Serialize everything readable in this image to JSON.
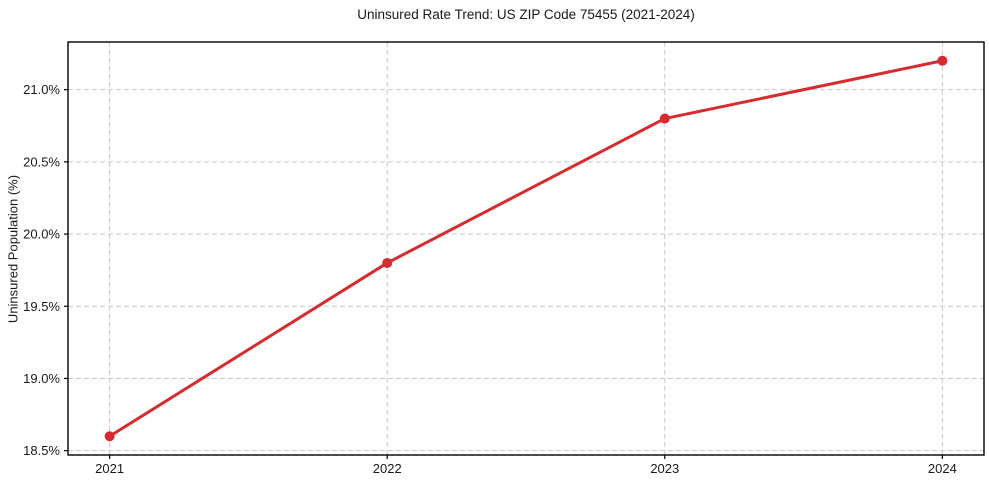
{
  "chart_data": {
    "type": "line",
    "title": "Uninsured Rate Trend: US ZIP Code 75455 (2021-2024)",
    "xlabel": "",
    "ylabel": "Uninsured Population (%)",
    "x": [
      2021,
      2022,
      2023,
      2024
    ],
    "series": [
      {
        "name": "Uninsured Rate",
        "values": [
          18.6,
          19.8,
          20.8,
          21.2
        ]
      }
    ],
    "x_tick_labels": [
      "2021",
      "2022",
      "2023",
      "2024"
    ],
    "y_ticks": [
      18.5,
      19.0,
      19.5,
      20.0,
      20.5,
      21.0
    ],
    "y_tick_labels": [
      "18.5%",
      "19.0%",
      "19.5%",
      "20.0%",
      "20.5%",
      "21.0%"
    ],
    "xlim": [
      2020.85,
      2024.15
    ],
    "ylim": [
      18.47,
      21.33
    ],
    "grid": true,
    "grid_style": "dashed",
    "legend": "none",
    "marker": "circle",
    "marker_size": 5,
    "line_width": 3
  },
  "colors": {
    "line": "#d62b2f",
    "grid": "#c9c9c9",
    "axis": "#000000",
    "text": "#1a1a1a",
    "background": "#ffffff"
  }
}
